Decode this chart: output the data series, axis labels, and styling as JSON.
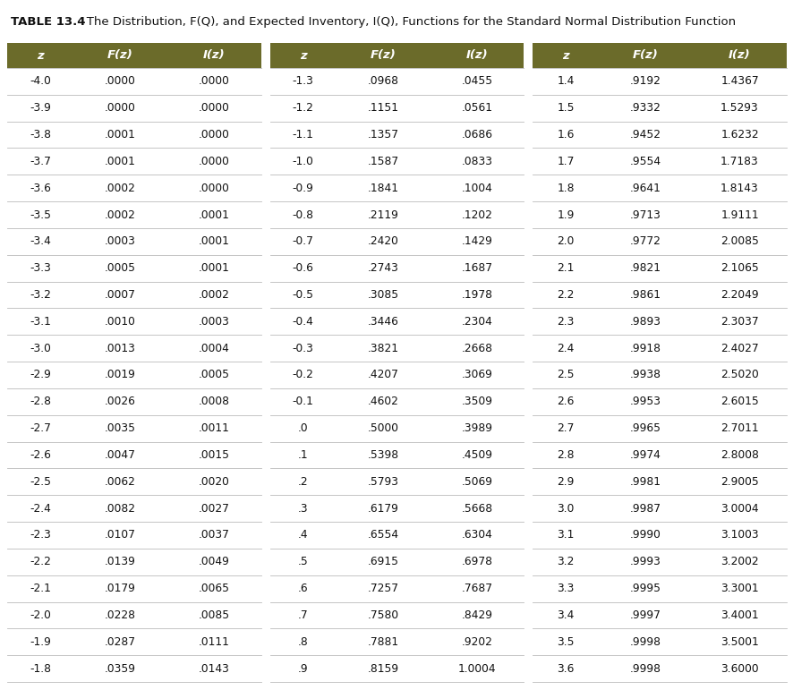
{
  "title_bold": "TABLE 13.4",
  "title_rest": "   The Distribution,  F(Q), and Expected Inventory, I(Q), Functions for the Standard Normal Distribution Function",
  "header_bg": "#6b6b2a",
  "header_text_color": "#ffffff",
  "col1_data": [
    [
      "-4.0",
      ".0000",
      ".0000"
    ],
    [
      "-3.9",
      ".0000",
      ".0000"
    ],
    [
      "-3.8",
      ".0001",
      ".0000"
    ],
    [
      "-3.7",
      ".0001",
      ".0000"
    ],
    [
      "-3.6",
      ".0002",
      ".0000"
    ],
    [
      "-3.5",
      ".0002",
      ".0001"
    ],
    [
      "-3.4",
      ".0003",
      ".0001"
    ],
    [
      "-3.3",
      ".0005",
      ".0001"
    ],
    [
      "-3.2",
      ".0007",
      ".0002"
    ],
    [
      "-3.1",
      ".0010",
      ".0003"
    ],
    [
      "-3.0",
      ".0013",
      ".0004"
    ],
    [
      "-2.9",
      ".0019",
      ".0005"
    ],
    [
      "-2.8",
      ".0026",
      ".0008"
    ],
    [
      "-2.7",
      ".0035",
      ".0011"
    ],
    [
      "-2.6",
      ".0047",
      ".0015"
    ],
    [
      "-2.5",
      ".0062",
      ".0020"
    ],
    [
      "-2.4",
      ".0082",
      ".0027"
    ],
    [
      "-2.3",
      ".0107",
      ".0037"
    ],
    [
      "-2.2",
      ".0139",
      ".0049"
    ],
    [
      "-2.1",
      ".0179",
      ".0065"
    ],
    [
      "-2.0",
      ".0228",
      ".0085"
    ],
    [
      "-1.9",
      ".0287",
      ".0111"
    ],
    [
      "-1.8",
      ".0359",
      ".0143"
    ]
  ],
  "col2_data": [
    [
      "-1.3",
      ".0968",
      ".0455"
    ],
    [
      "-1.2",
      ".1151",
      ".0561"
    ],
    [
      "-1.1",
      ".1357",
      ".0686"
    ],
    [
      "-1.0",
      ".1587",
      ".0833"
    ],
    [
      "-0.9",
      ".1841",
      ".1004"
    ],
    [
      "-0.8",
      ".2119",
      ".1202"
    ],
    [
      "-0.7",
      ".2420",
      ".1429"
    ],
    [
      "-0.6",
      ".2743",
      ".1687"
    ],
    [
      "-0.5",
      ".3085",
      ".1978"
    ],
    [
      "-0.4",
      ".3446",
      ".2304"
    ],
    [
      "-0.3",
      ".3821",
      ".2668"
    ],
    [
      "-0.2",
      ".4207",
      ".3069"
    ],
    [
      "-0.1",
      ".4602",
      ".3509"
    ],
    [
      ".0",
      ".5000",
      ".3989"
    ],
    [
      ".1",
      ".5398",
      ".4509"
    ],
    [
      ".2",
      ".5793",
      ".5069"
    ],
    [
      ".3",
      ".6179",
      ".5668"
    ],
    [
      ".4",
      ".6554",
      ".6304"
    ],
    [
      ".5",
      ".6915",
      ".6978"
    ],
    [
      ".6",
      ".7257",
      ".7687"
    ],
    [
      ".7",
      ".7580",
      ".8429"
    ],
    [
      ".8",
      ".7881",
      ".9202"
    ],
    [
      ".9",
      ".8159",
      "1.0004"
    ]
  ],
  "col3_data": [
    [
      "1.4",
      ".9192",
      "1.4367"
    ],
    [
      "1.5",
      ".9332",
      "1.5293"
    ],
    [
      "1.6",
      ".9452",
      "1.6232"
    ],
    [
      "1.7",
      ".9554",
      "1.7183"
    ],
    [
      "1.8",
      ".9641",
      "1.8143"
    ],
    [
      "1.9",
      ".9713",
      "1.9111"
    ],
    [
      "2.0",
      ".9772",
      "2.0085"
    ],
    [
      "2.1",
      ".9821",
      "2.1065"
    ],
    [
      "2.2",
      ".9861",
      "2.2049"
    ],
    [
      "2.3",
      ".9893",
      "2.3037"
    ],
    [
      "2.4",
      ".9918",
      "2.4027"
    ],
    [
      "2.5",
      ".9938",
      "2.5020"
    ],
    [
      "2.6",
      ".9953",
      "2.6015"
    ],
    [
      "2.7",
      ".9965",
      "2.7011"
    ],
    [
      "2.8",
      ".9974",
      "2.8008"
    ],
    [
      "2.9",
      ".9981",
      "2.9005"
    ],
    [
      "3.0",
      ".9987",
      "3.0004"
    ],
    [
      "3.1",
      ".9990",
      "3.1003"
    ],
    [
      "3.2",
      ".9993",
      "3.2002"
    ],
    [
      "3.3",
      ".9995",
      "3.3001"
    ],
    [
      "3.4",
      ".9997",
      "3.4001"
    ],
    [
      "3.5",
      ".9998",
      "3.5001"
    ],
    [
      "3.6",
      ".9998",
      "3.6000"
    ]
  ]
}
